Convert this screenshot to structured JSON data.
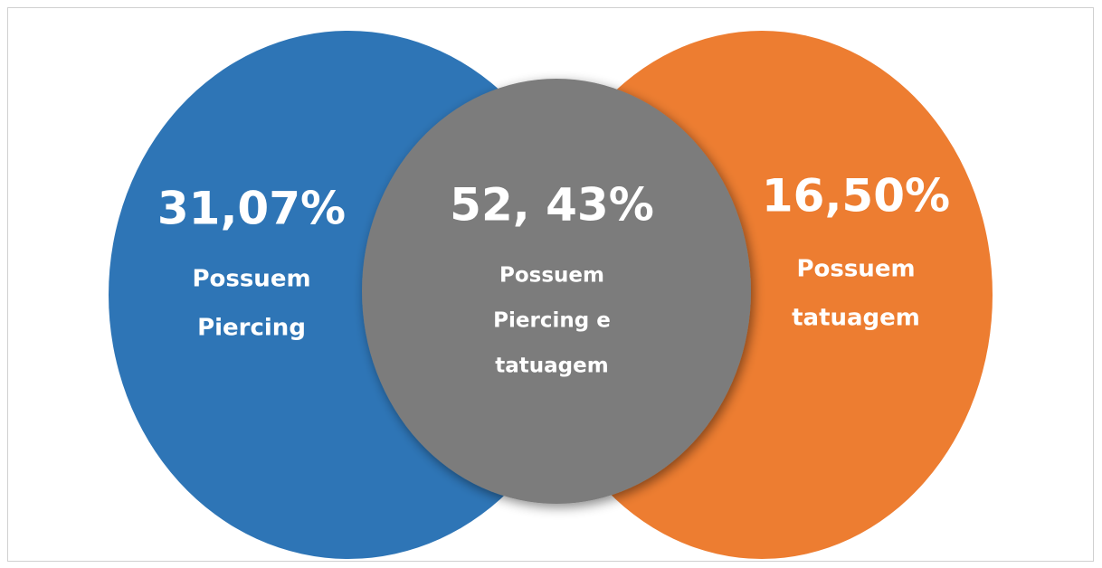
{
  "nodes": [
    {
      "value": "31,07%",
      "label": [
        "Possuem",
        "Piercing"
      ]
    },
    {
      "value": "52, 43%",
      "label": [
        "Possuem",
        "Piercing e",
        "tatuagem"
      ]
    },
    {
      "value": "16,50%",
      "label": [
        "Possuem",
        "tatuagem"
      ]
    }
  ]
}
